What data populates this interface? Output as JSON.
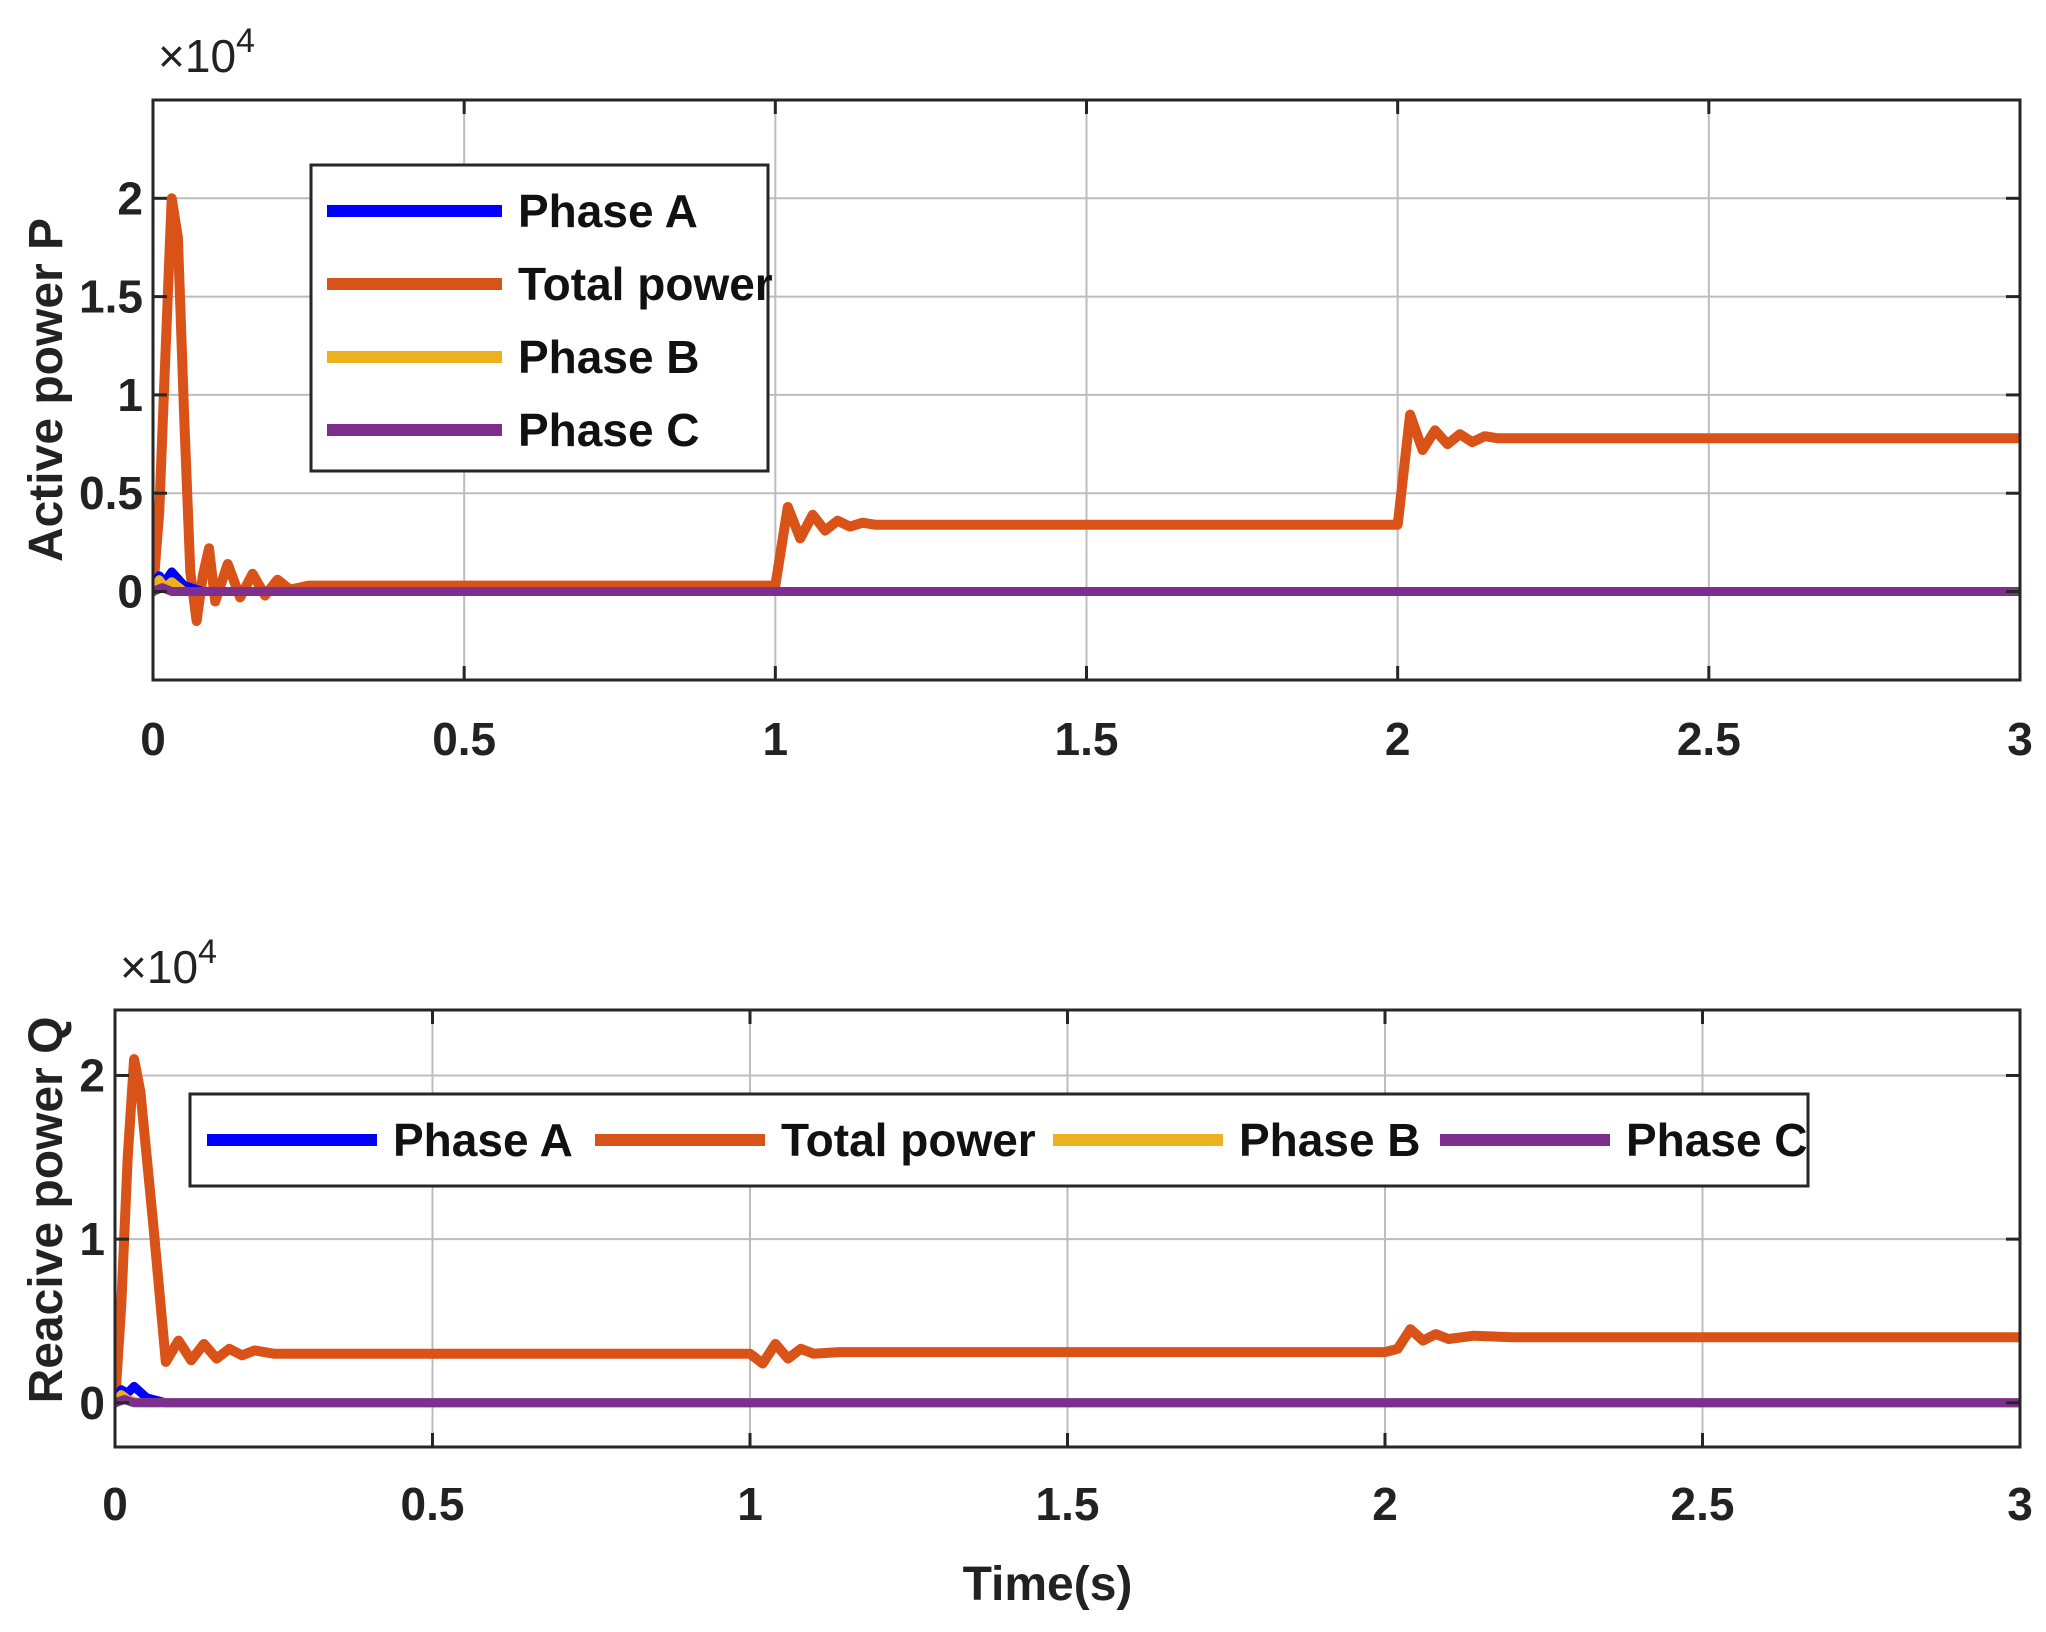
{
  "chart_data": [
    {
      "type": "line",
      "ylabel": "Active power P",
      "xlabel": "",
      "exponent": "×10",
      "exponent_power": "4",
      "xlim": [
        0,
        3
      ],
      "ylim": [
        -0.45,
        2.5
      ],
      "xticks": [
        "0",
        "0.5",
        "1",
        "1.5",
        "2",
        "2.5",
        "3"
      ],
      "yticks": [
        "0",
        "0.5",
        "1",
        "1.5",
        "2"
      ],
      "grid": true,
      "legend_position": "upper-left, vertical",
      "series": [
        {
          "name": "Phase A",
          "color": "#0000ff",
          "x": [
            0,
            0.01,
            0.02,
            0.03,
            0.05,
            0.08,
            3.0
          ],
          "y": [
            0,
            0.08,
            0.05,
            0.1,
            0.03,
            0,
            0
          ]
        },
        {
          "name": "Total power",
          "color": "#d95319",
          "x": [
            0,
            0.01,
            0.02,
            0.03,
            0.04,
            0.05,
            0.06,
            0.07,
            0.08,
            0.09,
            0.1,
            0.12,
            0.14,
            0.16,
            0.18,
            0.2,
            0.22,
            0.25,
            0.3,
            0.4,
            1.0,
            1.02,
            1.04,
            1.06,
            1.08,
            1.1,
            1.12,
            1.14,
            1.16,
            1.2,
            1.3,
            2.0,
            2.02,
            2.04,
            2.06,
            2.08,
            2.1,
            2.12,
            2.14,
            2.16,
            2.2,
            2.3,
            3.0
          ],
          "y": [
            0,
            0.4,
            1.2,
            2.0,
            1.8,
            0.9,
            0.1,
            -0.15,
            0.08,
            0.22,
            -0.05,
            0.14,
            -0.03,
            0.09,
            -0.02,
            0.06,
            0.01,
            0.03,
            0.03,
            0.03,
            0.03,
            0.43,
            0.27,
            0.39,
            0.31,
            0.36,
            0.33,
            0.35,
            0.34,
            0.34,
            0.34,
            0.34,
            0.9,
            0.72,
            0.82,
            0.75,
            0.8,
            0.76,
            0.79,
            0.78,
            0.78,
            0.78,
            0.78
          ]
        },
        {
          "name": "Phase B",
          "color": "#edb120",
          "x": [
            0,
            0.01,
            0.02,
            0.03,
            0.05,
            3.0
          ],
          "y": [
            0,
            0.06,
            0.02,
            0.05,
            0,
            0
          ]
        },
        {
          "name": "Phase C",
          "color": "#7e2f8e",
          "x": [
            0,
            0.015,
            0.03,
            3.0
          ],
          "y": [
            0,
            0.02,
            0,
            0
          ]
        }
      ]
    },
    {
      "type": "line",
      "ylabel": "Reacive power Q",
      "xlabel": "Time(s)",
      "exponent": "×10",
      "exponent_power": "4",
      "xlim": [
        0,
        3
      ],
      "ylim": [
        -0.27,
        2.4
      ],
      "xticks": [
        "0",
        "0.5",
        "1",
        "1.5",
        "2",
        "2.5",
        "3"
      ],
      "yticks": [
        "0",
        "1",
        "2"
      ],
      "grid": true,
      "legend_position": "upper-center, horizontal",
      "series": [
        {
          "name": "Phase A",
          "color": "#0000ff",
          "x": [
            0,
            0.01,
            0.02,
            0.03,
            0.05,
            0.08,
            3.0
          ],
          "y": [
            0,
            0.08,
            0.06,
            0.1,
            0.03,
            0,
            0
          ]
        },
        {
          "name": "Total power",
          "color": "#d95319",
          "x": [
            0,
            0.01,
            0.02,
            0.03,
            0.04,
            0.06,
            0.08,
            0.1,
            0.12,
            0.14,
            0.16,
            0.18,
            0.2,
            0.22,
            0.25,
            0.3,
            0.4,
            1.0,
            1.02,
            1.04,
            1.06,
            1.08,
            1.1,
            1.14,
            1.2,
            1.3,
            2.0,
            2.02,
            2.04,
            2.06,
            2.08,
            2.1,
            2.14,
            2.2,
            2.3,
            3.0
          ],
          "y": [
            0,
            0.6,
            1.5,
            2.1,
            1.9,
            1.1,
            0.25,
            0.38,
            0.26,
            0.36,
            0.27,
            0.33,
            0.29,
            0.32,
            0.3,
            0.3,
            0.3,
            0.3,
            0.24,
            0.36,
            0.27,
            0.33,
            0.3,
            0.31,
            0.31,
            0.31,
            0.31,
            0.33,
            0.45,
            0.38,
            0.42,
            0.39,
            0.41,
            0.4,
            0.4,
            0.4
          ]
        },
        {
          "name": "Phase B",
          "color": "#edb120",
          "x": [
            0,
            0.01,
            0.02,
            0.04,
            3.0
          ],
          "y": [
            0,
            0.05,
            0.02,
            0,
            0
          ]
        },
        {
          "name": "Phase C",
          "color": "#7e2f8e",
          "x": [
            0,
            0.015,
            0.03,
            3.0
          ],
          "y": [
            0,
            0.02,
            0,
            0
          ]
        }
      ]
    }
  ]
}
